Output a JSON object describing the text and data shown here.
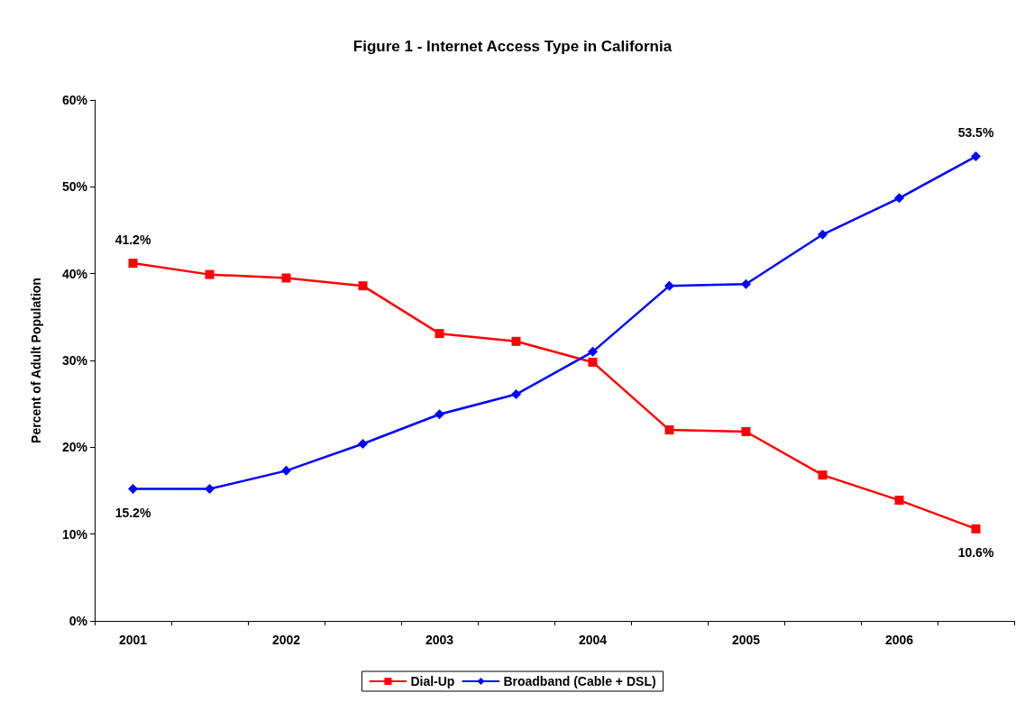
{
  "chart_data": {
    "type": "line",
    "title": "Figure 1 - Internet Access Type in California",
    "ylabel": "Percent of Adult Population",
    "categories": [
      "2001",
      null,
      "2002",
      null,
      "2003",
      null,
      "2004",
      null,
      "2005",
      null,
      "2006",
      null
    ],
    "series": [
      {
        "name": "Dial-Up",
        "color": "#ff0000",
        "marker": "square",
        "values": [
          41.2,
          39.9,
          39.5,
          38.6,
          33.1,
          32.2,
          29.8,
          22.0,
          21.8,
          16.8,
          13.9,
          10.6
        ],
        "value_labels": [
          "41.2%",
          null,
          null,
          null,
          null,
          null,
          null,
          null,
          null,
          null,
          null,
          "10.6%"
        ]
      },
      {
        "name": "Broadband (Cable + DSL)",
        "color": "#0000ff",
        "marker": "diamond",
        "values": [
          15.2,
          15.2,
          17.3,
          20.4,
          23.8,
          26.1,
          31.0,
          38.6,
          38.8,
          44.5,
          48.7,
          53.5
        ],
        "value_labels": [
          "15.2%",
          null,
          null,
          null,
          null,
          null,
          null,
          null,
          null,
          null,
          null,
          "53.5%"
        ]
      }
    ],
    "ylim": [
      0,
      60
    ],
    "yticks": [
      {
        "value": 0,
        "label": "0%"
      },
      {
        "value": 10,
        "label": "10%"
      },
      {
        "value": 20,
        "label": "20%"
      },
      {
        "value": 30,
        "label": "30%"
      },
      {
        "value": 40,
        "label": "40%"
      },
      {
        "value": 50,
        "label": "50%"
      },
      {
        "value": 60,
        "label": "60%"
      }
    ],
    "grid": false,
    "legend": "bottom",
    "line_style": "solid"
  }
}
